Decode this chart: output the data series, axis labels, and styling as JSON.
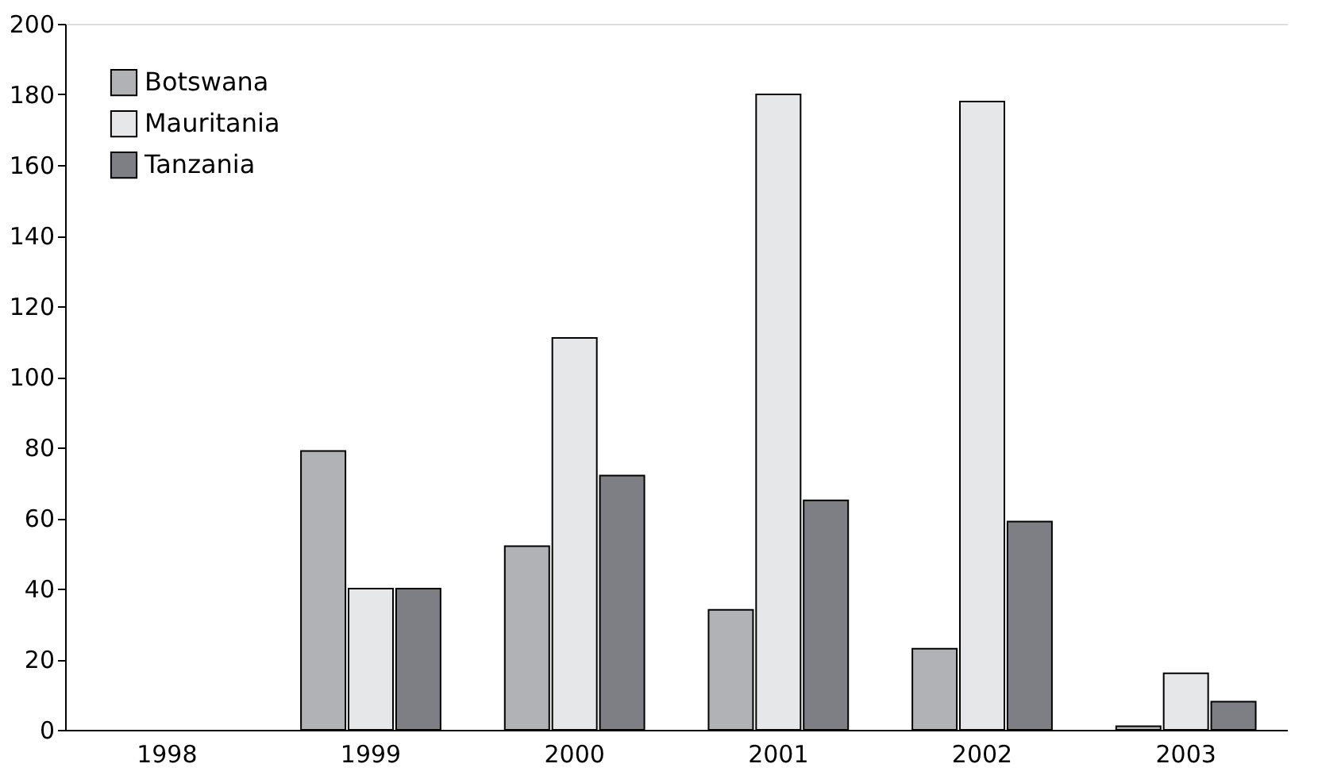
{
  "chart_data": {
    "type": "bar",
    "categories": [
      "1998",
      "1999",
      "2000",
      "2001",
      "2002",
      "2003"
    ],
    "series": [
      {
        "name": "Botswana",
        "color": "#b1b2b6",
        "values": [
          null,
          79,
          52,
          34,
          23,
          1
        ]
      },
      {
        "name": "Mauritania",
        "color": "#e6e7e9",
        "values": [
          null,
          40,
          111,
          180,
          178,
          16
        ]
      },
      {
        "name": "Tanzania",
        "color": "#7e7f84",
        "values": [
          null,
          40,
          72,
          65,
          59,
          8
        ]
      }
    ],
    "ylim": [
      0,
      200
    ],
    "yticks": [
      0,
      20,
      40,
      60,
      80,
      100,
      120,
      140,
      160,
      180,
      200
    ],
    "grid": false,
    "legend": "top left"
  }
}
